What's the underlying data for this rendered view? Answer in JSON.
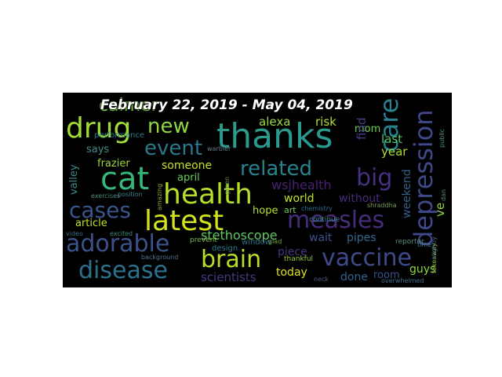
{
  "title": "February 22, 2019 - May 04, 2019",
  "words": [
    {
      "text": "thanks",
      "color": "#2a9a8c"
    },
    {
      "text": "health",
      "color": "#b5de2b"
    },
    {
      "text": "latest",
      "color": "#d2e21b"
    },
    {
      "text": "cat",
      "color": "#35b779"
    },
    {
      "text": "drug",
      "color": "#a2da37"
    },
    {
      "text": "adorable",
      "color": "#3b528b"
    },
    {
      "text": "disease",
      "color": "#2c728e"
    },
    {
      "text": "cases",
      "color": "#39568c"
    },
    {
      "text": "measles",
      "color": "#472c7a"
    },
    {
      "text": "vaccine",
      "color": "#3e4a89"
    },
    {
      "text": "brain",
      "color": "#b8de29"
    },
    {
      "text": "event",
      "color": "#2a788e"
    },
    {
      "text": "new",
      "color": "#8ed645"
    },
    {
      "text": "related",
      "color": "#25848e"
    },
    {
      "text": "big",
      "color": "#46307e"
    },
    {
      "text": "depression",
      "color": "#3f4889"
    },
    {
      "text": "care",
      "color": "#26828e"
    },
    {
      "text": "calmer",
      "color": "#7fd34e"
    },
    {
      "text": "wsjhealth",
      "color": "#482173"
    },
    {
      "text": "stethoscope",
      "color": "#5ec962"
    },
    {
      "text": "scientists",
      "color": "#443983"
    },
    {
      "text": "alexa",
      "color": "#95d840"
    },
    {
      "text": "risk",
      "color": "#b0dd2f"
    },
    {
      "text": "someone",
      "color": "#c8e020"
    },
    {
      "text": "april",
      "color": "#6ccd5a"
    },
    {
      "text": "frazier",
      "color": "#9bd93c"
    },
    {
      "text": "says",
      "color": "#3f8f8b"
    },
    {
      "text": "article",
      "color": "#c2df23"
    },
    {
      "text": "valley",
      "color": "#3a8c8c"
    },
    {
      "text": "world",
      "color": "#c4e021"
    },
    {
      "text": "without",
      "color": "#482979"
    },
    {
      "text": "hope",
      "color": "#b5de2b"
    },
    {
      "text": "wait",
      "color": "#3b528b"
    },
    {
      "text": "pipes",
      "color": "#31688e"
    },
    {
      "text": "piece",
      "color": "#46337e"
    },
    {
      "text": "today",
      "color": "#dde318"
    },
    {
      "text": "done",
      "color": "#33638d"
    },
    {
      "text": "room",
      "color": "#3b528b"
    },
    {
      "text": "guys",
      "color": "#8bd646"
    },
    {
      "text": "last",
      "color": "#52c569"
    },
    {
      "text": "year",
      "color": "#addc30"
    },
    {
      "text": "mom",
      "color": "#6ece58"
    },
    {
      "text": "find",
      "color": "#433e85"
    },
    {
      "text": "price",
      "color": "#5ec962"
    },
    {
      "text": "ve",
      "color": "#95d840"
    },
    {
      "text": "weekend",
      "color": "#355f8d"
    },
    {
      "text": "art",
      "color": "#6ece58"
    },
    {
      "text": "window",
      "color": "#2d718e"
    },
    {
      "text": "design",
      "color": "#277f8e"
    },
    {
      "text": "performance",
      "color": "#2a788e"
    },
    {
      "text": "continue",
      "color": "#3e8a8c"
    },
    {
      "text": "exercises",
      "color": "#4e8f7a"
    },
    {
      "text": "position",
      "color": "#3f7f8a"
    },
    {
      "text": "excited",
      "color": "#3d8f7f"
    },
    {
      "text": "video",
      "color": "#3b6c8c"
    },
    {
      "text": "background",
      "color": "#56708c"
    },
    {
      "text": "thankful",
      "color": "#9ac53a"
    },
    {
      "text": "prevent",
      "color": "#7ab848"
    },
    {
      "text": "chemistry",
      "color": "#2a6f8d"
    },
    {
      "text": "reporter",
      "color": "#5a8f7e"
    },
    {
      "text": "takeaway",
      "color": "#8bbf3c"
    },
    {
      "text": "shraddha",
      "color": "#7a9a5a"
    },
    {
      "text": "overwhelmed",
      "color": "#3f6d8e"
    },
    {
      "text": "time",
      "color": "#4f7f8e"
    },
    {
      "text": "public",
      "color": "#4f8f7f"
    },
    {
      "text": "neck",
      "color": "#4a5a8a"
    },
    {
      "text": "dan",
      "color": "#5a8a7a"
    },
    {
      "text": "amazing",
      "color": "#8aa53a"
    },
    {
      "text": "warbler",
      "color": "#6a7a8a"
    },
    {
      "text": "green",
      "color": "#6a8a4a"
    },
    {
      "text": "glad",
      "color": "#7aa04a"
    },
    {
      "text": "slightly",
      "color": "#4a6a8a"
    }
  ]
}
